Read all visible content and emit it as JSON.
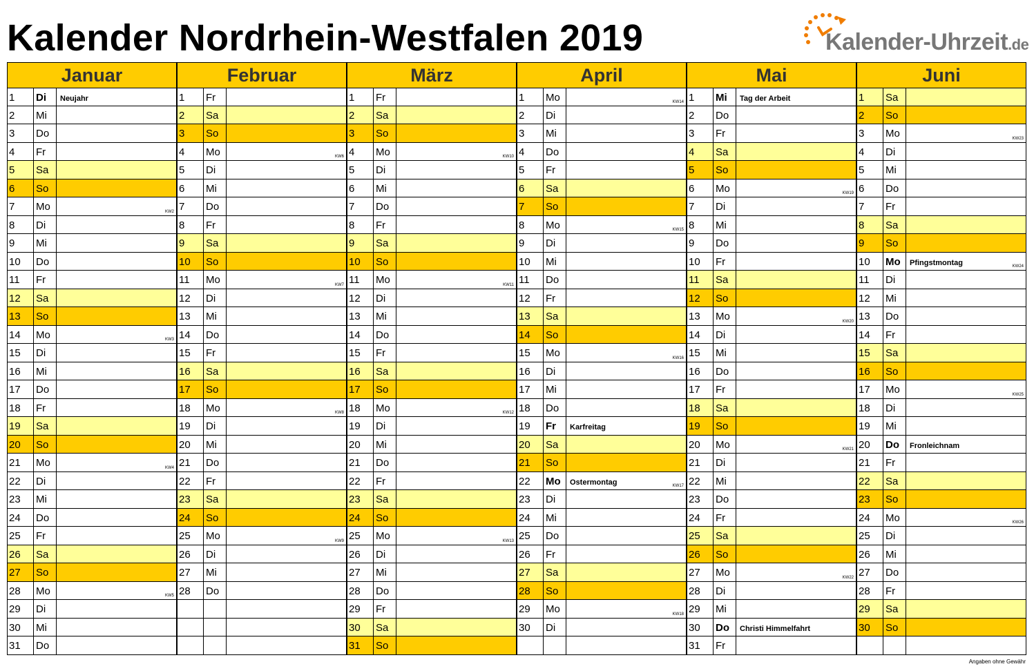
{
  "title": "Kalender Nordrhein-Westfalen 2019",
  "logo": {
    "text": "Kalender-Uhrzeit",
    "tld": ".de",
    "accent": "#f07d00"
  },
  "footer": "Angaben ohne Gewähr",
  "colors": {
    "saturday": "#ffff99",
    "sunday": "#ffcc00",
    "header": "#ffcc00"
  },
  "months": [
    {
      "name": "Januar",
      "days": [
        {
          "d": "1",
          "wd": "Di",
          "note": "Neujahr",
          "bold": true
        },
        {
          "d": "2",
          "wd": "Mi"
        },
        {
          "d": "3",
          "wd": "Do"
        },
        {
          "d": "4",
          "wd": "Fr"
        },
        {
          "d": "5",
          "wd": "Sa"
        },
        {
          "d": "6",
          "wd": "So"
        },
        {
          "d": "7",
          "wd": "Mo",
          "kw": "KW2"
        },
        {
          "d": "8",
          "wd": "Di"
        },
        {
          "d": "9",
          "wd": "Mi"
        },
        {
          "d": "10",
          "wd": "Do"
        },
        {
          "d": "11",
          "wd": "Fr"
        },
        {
          "d": "12",
          "wd": "Sa"
        },
        {
          "d": "13",
          "wd": "So"
        },
        {
          "d": "14",
          "wd": "Mo",
          "kw": "KW3"
        },
        {
          "d": "15",
          "wd": "Di"
        },
        {
          "d": "16",
          "wd": "Mi"
        },
        {
          "d": "17",
          "wd": "Do"
        },
        {
          "d": "18",
          "wd": "Fr"
        },
        {
          "d": "19",
          "wd": "Sa"
        },
        {
          "d": "20",
          "wd": "So"
        },
        {
          "d": "21",
          "wd": "Mo",
          "kw": "KW4"
        },
        {
          "d": "22",
          "wd": "Di"
        },
        {
          "d": "23",
          "wd": "Mi"
        },
        {
          "d": "24",
          "wd": "Do"
        },
        {
          "d": "25",
          "wd": "Fr"
        },
        {
          "d": "26",
          "wd": "Sa"
        },
        {
          "d": "27",
          "wd": "So"
        },
        {
          "d": "28",
          "wd": "Mo",
          "kw": "KW5"
        },
        {
          "d": "29",
          "wd": "Di"
        },
        {
          "d": "30",
          "wd": "Mi"
        },
        {
          "d": "31",
          "wd": "Do"
        }
      ]
    },
    {
      "name": "Februar",
      "days": [
        {
          "d": "1",
          "wd": "Fr"
        },
        {
          "d": "2",
          "wd": "Sa"
        },
        {
          "d": "3",
          "wd": "So"
        },
        {
          "d": "4",
          "wd": "Mo",
          "kw": "KW6"
        },
        {
          "d": "5",
          "wd": "Di"
        },
        {
          "d": "6",
          "wd": "Mi"
        },
        {
          "d": "7",
          "wd": "Do"
        },
        {
          "d": "8",
          "wd": "Fr"
        },
        {
          "d": "9",
          "wd": "Sa"
        },
        {
          "d": "10",
          "wd": "So"
        },
        {
          "d": "11",
          "wd": "Mo",
          "kw": "KW7"
        },
        {
          "d": "12",
          "wd": "Di"
        },
        {
          "d": "13",
          "wd": "Mi"
        },
        {
          "d": "14",
          "wd": "Do"
        },
        {
          "d": "15",
          "wd": "Fr"
        },
        {
          "d": "16",
          "wd": "Sa"
        },
        {
          "d": "17",
          "wd": "So"
        },
        {
          "d": "18",
          "wd": "Mo",
          "kw": "KW8"
        },
        {
          "d": "19",
          "wd": "Di"
        },
        {
          "d": "20",
          "wd": "Mi"
        },
        {
          "d": "21",
          "wd": "Do"
        },
        {
          "d": "22",
          "wd": "Fr"
        },
        {
          "d": "23",
          "wd": "Sa"
        },
        {
          "d": "24",
          "wd": "So"
        },
        {
          "d": "25",
          "wd": "Mo",
          "kw": "KW9"
        },
        {
          "d": "26",
          "wd": "Di"
        },
        {
          "d": "27",
          "wd": "Mi"
        },
        {
          "d": "28",
          "wd": "Do"
        }
      ]
    },
    {
      "name": "März",
      "days": [
        {
          "d": "1",
          "wd": "Fr"
        },
        {
          "d": "2",
          "wd": "Sa"
        },
        {
          "d": "3",
          "wd": "So"
        },
        {
          "d": "4",
          "wd": "Mo",
          "kw": "KW10"
        },
        {
          "d": "5",
          "wd": "Di"
        },
        {
          "d": "6",
          "wd": "Mi"
        },
        {
          "d": "7",
          "wd": "Do"
        },
        {
          "d": "8",
          "wd": "Fr"
        },
        {
          "d": "9",
          "wd": "Sa"
        },
        {
          "d": "10",
          "wd": "So"
        },
        {
          "d": "11",
          "wd": "Mo",
          "kw": "KW11"
        },
        {
          "d": "12",
          "wd": "Di"
        },
        {
          "d": "13",
          "wd": "Mi"
        },
        {
          "d": "14",
          "wd": "Do"
        },
        {
          "d": "15",
          "wd": "Fr"
        },
        {
          "d": "16",
          "wd": "Sa"
        },
        {
          "d": "17",
          "wd": "So"
        },
        {
          "d": "18",
          "wd": "Mo",
          "kw": "KW12"
        },
        {
          "d": "19",
          "wd": "Di"
        },
        {
          "d": "20",
          "wd": "Mi"
        },
        {
          "d": "21",
          "wd": "Do"
        },
        {
          "d": "22",
          "wd": "Fr"
        },
        {
          "d": "23",
          "wd": "Sa"
        },
        {
          "d": "24",
          "wd": "So"
        },
        {
          "d": "25",
          "wd": "Mo",
          "kw": "KW13"
        },
        {
          "d": "26",
          "wd": "Di"
        },
        {
          "d": "27",
          "wd": "Mi"
        },
        {
          "d": "28",
          "wd": "Do"
        },
        {
          "d": "29",
          "wd": "Fr"
        },
        {
          "d": "30",
          "wd": "Sa"
        },
        {
          "d": "31",
          "wd": "So"
        }
      ]
    },
    {
      "name": "April",
      "days": [
        {
          "d": "1",
          "wd": "Mo",
          "kw": "KW14"
        },
        {
          "d": "2",
          "wd": "Di"
        },
        {
          "d": "3",
          "wd": "Mi"
        },
        {
          "d": "4",
          "wd": "Do"
        },
        {
          "d": "5",
          "wd": "Fr"
        },
        {
          "d": "6",
          "wd": "Sa"
        },
        {
          "d": "7",
          "wd": "So"
        },
        {
          "d": "8",
          "wd": "Mo",
          "kw": "KW15"
        },
        {
          "d": "9",
          "wd": "Di"
        },
        {
          "d": "10",
          "wd": "Mi"
        },
        {
          "d": "11",
          "wd": "Do"
        },
        {
          "d": "12",
          "wd": "Fr"
        },
        {
          "d": "13",
          "wd": "Sa"
        },
        {
          "d": "14",
          "wd": "So"
        },
        {
          "d": "15",
          "wd": "Mo",
          "kw": "KW16"
        },
        {
          "d": "16",
          "wd": "Di"
        },
        {
          "d": "17",
          "wd": "Mi"
        },
        {
          "d": "18",
          "wd": "Do"
        },
        {
          "d": "19",
          "wd": "Fr",
          "note": "Karfreitag",
          "bold": true
        },
        {
          "d": "20",
          "wd": "Sa"
        },
        {
          "d": "21",
          "wd": "So"
        },
        {
          "d": "22",
          "wd": "Mo",
          "note": "Ostermontag",
          "bold": true,
          "kw": "KW17"
        },
        {
          "d": "23",
          "wd": "Di"
        },
        {
          "d": "24",
          "wd": "Mi"
        },
        {
          "d": "25",
          "wd": "Do"
        },
        {
          "d": "26",
          "wd": "Fr"
        },
        {
          "d": "27",
          "wd": "Sa"
        },
        {
          "d": "28",
          "wd": "So"
        },
        {
          "d": "29",
          "wd": "Mo",
          "kw": "KW18"
        },
        {
          "d": "30",
          "wd": "Di"
        }
      ]
    },
    {
      "name": "Mai",
      "days": [
        {
          "d": "1",
          "wd": "Mi",
          "note": "Tag der Arbeit",
          "bold": true
        },
        {
          "d": "2",
          "wd": "Do"
        },
        {
          "d": "3",
          "wd": "Fr"
        },
        {
          "d": "4",
          "wd": "Sa"
        },
        {
          "d": "5",
          "wd": "So"
        },
        {
          "d": "6",
          "wd": "Mo",
          "kw": "KW19"
        },
        {
          "d": "7",
          "wd": "Di"
        },
        {
          "d": "8",
          "wd": "Mi"
        },
        {
          "d": "9",
          "wd": "Do"
        },
        {
          "d": "10",
          "wd": "Fr"
        },
        {
          "d": "11",
          "wd": "Sa"
        },
        {
          "d": "12",
          "wd": "So"
        },
        {
          "d": "13",
          "wd": "Mo",
          "kw": "KW20"
        },
        {
          "d": "14",
          "wd": "Di"
        },
        {
          "d": "15",
          "wd": "Mi"
        },
        {
          "d": "16",
          "wd": "Do"
        },
        {
          "d": "17",
          "wd": "Fr"
        },
        {
          "d": "18",
          "wd": "Sa"
        },
        {
          "d": "19",
          "wd": "So"
        },
        {
          "d": "20",
          "wd": "Mo",
          "kw": "KW21"
        },
        {
          "d": "21",
          "wd": "Di"
        },
        {
          "d": "22",
          "wd": "Mi"
        },
        {
          "d": "23",
          "wd": "Do"
        },
        {
          "d": "24",
          "wd": "Fr"
        },
        {
          "d": "25",
          "wd": "Sa"
        },
        {
          "d": "26",
          "wd": "So"
        },
        {
          "d": "27",
          "wd": "Mo",
          "kw": "KW22"
        },
        {
          "d": "28",
          "wd": "Di"
        },
        {
          "d": "29",
          "wd": "Mi"
        },
        {
          "d": "30",
          "wd": "Do",
          "note": "Christi Himmelfahrt",
          "bold": true
        },
        {
          "d": "31",
          "wd": "Fr"
        }
      ]
    },
    {
      "name": "Juni",
      "days": [
        {
          "d": "1",
          "wd": "Sa"
        },
        {
          "d": "2",
          "wd": "So"
        },
        {
          "d": "3",
          "wd": "Mo",
          "kw": "KW23"
        },
        {
          "d": "4",
          "wd": "Di"
        },
        {
          "d": "5",
          "wd": "Mi"
        },
        {
          "d": "6",
          "wd": "Do"
        },
        {
          "d": "7",
          "wd": "Fr"
        },
        {
          "d": "8",
          "wd": "Sa"
        },
        {
          "d": "9",
          "wd": "So"
        },
        {
          "d": "10",
          "wd": "Mo",
          "note": "Pfingstmontag",
          "bold": true,
          "kw": "KW24"
        },
        {
          "d": "11",
          "wd": "Di"
        },
        {
          "d": "12",
          "wd": "Mi"
        },
        {
          "d": "13",
          "wd": "Do"
        },
        {
          "d": "14",
          "wd": "Fr"
        },
        {
          "d": "15",
          "wd": "Sa"
        },
        {
          "d": "16",
          "wd": "So"
        },
        {
          "d": "17",
          "wd": "Mo",
          "kw": "KW25"
        },
        {
          "d": "18",
          "wd": "Di"
        },
        {
          "d": "19",
          "wd": "Mi"
        },
        {
          "d": "20",
          "wd": "Do",
          "note": "Fronleichnam",
          "bold": true
        },
        {
          "d": "21",
          "wd": "Fr"
        },
        {
          "d": "22",
          "wd": "Sa"
        },
        {
          "d": "23",
          "wd": "So"
        },
        {
          "d": "24",
          "wd": "Mo",
          "kw": "KW26"
        },
        {
          "d": "25",
          "wd": "Di"
        },
        {
          "d": "26",
          "wd": "Mi"
        },
        {
          "d": "27",
          "wd": "Do"
        },
        {
          "d": "28",
          "wd": "Fr"
        },
        {
          "d": "29",
          "wd": "Sa"
        },
        {
          "d": "30",
          "wd": "So"
        }
      ]
    }
  ]
}
